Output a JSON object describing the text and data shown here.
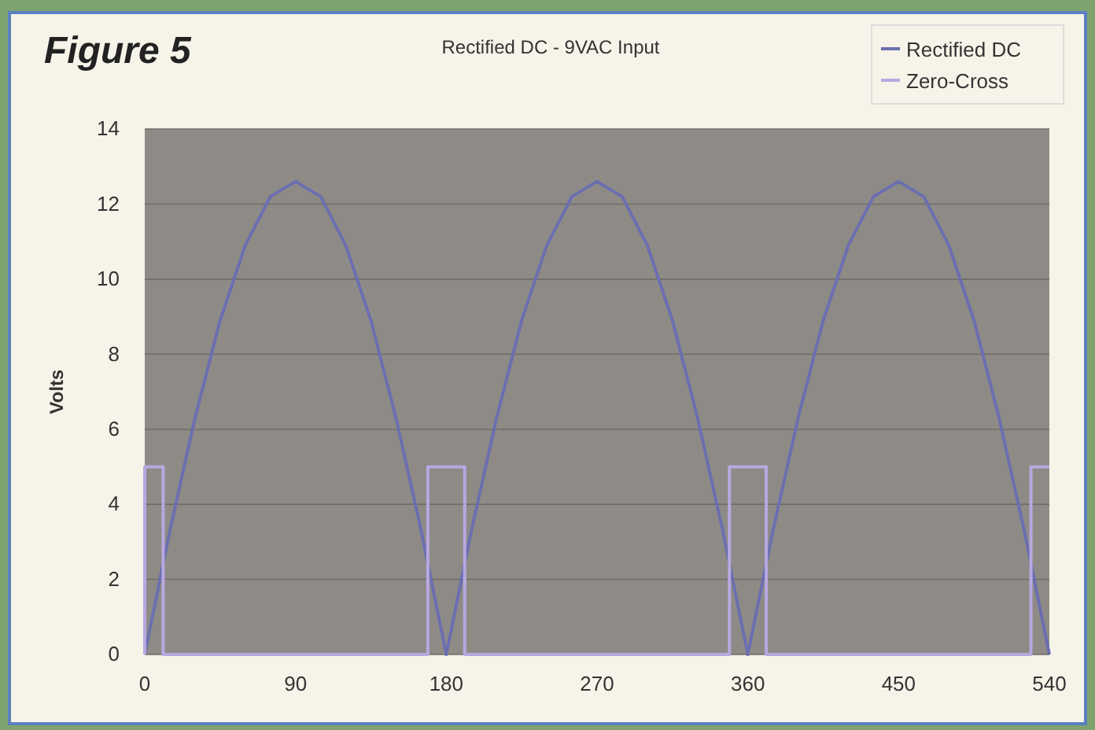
{
  "chart_data": {
    "type": "line",
    "title": "Rectified DC - 9VAC Input",
    "ylabel": "Volts",
    "annotations": [
      "Figure 5"
    ],
    "xlim": [
      0,
      540
    ],
    "xticks": [
      0,
      90,
      180,
      270,
      360,
      450,
      540
    ],
    "ylim": [
      0,
      14
    ],
    "yticks": [
      0,
      2,
      4,
      6,
      8,
      10,
      12,
      14
    ],
    "grid": "y",
    "legend": "top right",
    "marker": "none",
    "line_style": "solid",
    "series": [
      {
        "name": "Rectified DC",
        "color": "#6b6fb0",
        "x": [
          0,
          15,
          30,
          45,
          60,
          75,
          90,
          105,
          120,
          135,
          150,
          165,
          180,
          195,
          210,
          225,
          240,
          255,
          270,
          285,
          300,
          315,
          330,
          345,
          360,
          375,
          390,
          405,
          420,
          435,
          450,
          465,
          480,
          495,
          510,
          525,
          540
        ],
        "values": [
          0,
          3.3,
          6.3,
          8.9,
          10.9,
          12.2,
          12.6,
          12.2,
          10.9,
          8.9,
          6.3,
          3.3,
          0,
          3.3,
          6.3,
          8.9,
          10.9,
          12.2,
          12.6,
          12.2,
          10.9,
          8.9,
          6.3,
          3.3,
          0,
          3.3,
          6.3,
          8.9,
          10.9,
          12.2,
          12.6,
          12.2,
          10.9,
          8.9,
          6.3,
          3.3,
          0
        ]
      },
      {
        "name": "Zero-Cross",
        "color": "#b8a8e0",
        "x": [
          0,
          0,
          11,
          11,
          169,
          169,
          191,
          191,
          349,
          349,
          371,
          371,
          529,
          529,
          540
        ],
        "values": [
          0,
          5,
          5,
          0,
          0,
          5,
          5,
          0,
          0,
          5,
          5,
          0,
          0,
          5,
          5
        ]
      }
    ]
  }
}
